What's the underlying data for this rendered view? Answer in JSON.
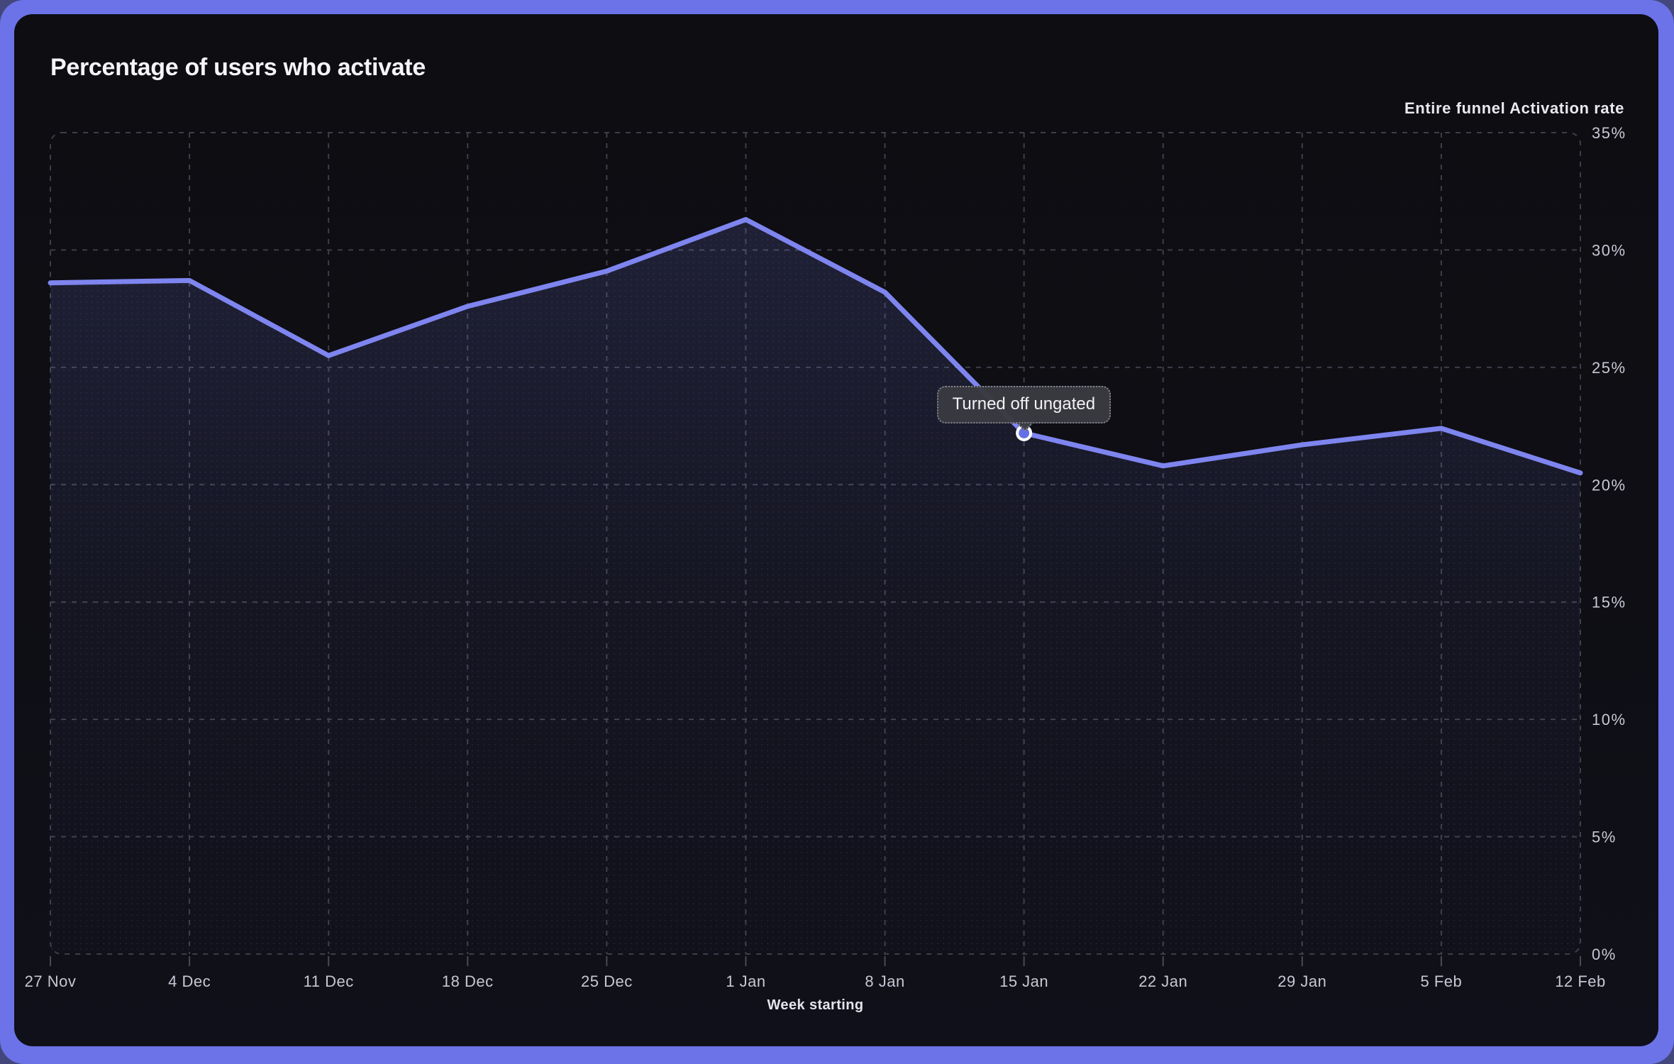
{
  "window": {
    "page_bg": "#43477B",
    "frame_color": "#6C72E7",
    "card_bg": "#0E0E13"
  },
  "chart": {
    "title": "Percentage of users who activate",
    "y_axis_title": "Entire funnel Activation rate",
    "x_axis_title": "Week starting",
    "colors": {
      "line": "#7E85EF",
      "area_top": "rgba(126,133,239,0.16)",
      "area_mid": "rgba(126,133,239,0.06)",
      "area_bottom": "rgba(126,133,239,0.01)",
      "grid": "#3E3E49",
      "tick_mark": "#4A4A55",
      "tick_text": "#C7C8D4",
      "title_text": "#F5F5F8",
      "marker_fill": "#6470E8",
      "marker_ring": "#FFFFFF",
      "tooltip_bg": "#3A3A41",
      "tooltip_border": "#84848D",
      "tooltip_text": "#F2F2F5"
    }
  },
  "tooltip": {
    "text": "Turned off ungated",
    "point_index": 7
  },
  "chart_data": {
    "type": "line",
    "title": "Percentage of users who activate",
    "xlabel": "Week starting",
    "ylabel": "Entire funnel Activation rate",
    "categories": [
      "27 Nov",
      "4 Dec",
      "11 Dec",
      "18 Dec",
      "25 Dec",
      "1 Jan",
      "8 Jan",
      "15 Jan",
      "22 Jan",
      "29 Jan",
      "5 Feb",
      "12 Feb"
    ],
    "series": [
      {
        "name": "Entire funnel Activation rate",
        "values": [
          28.6,
          28.7,
          25.5,
          27.6,
          29.1,
          31.3,
          28.2,
          22.2,
          20.8,
          21.7,
          22.4,
          20.5
        ]
      }
    ],
    "y_ticks": [
      "0%",
      "5%",
      "10%",
      "15%",
      "20%",
      "25%",
      "30%",
      "35%"
    ],
    "y_tick_values": [
      0,
      5,
      10,
      15,
      20,
      25,
      30,
      35
    ],
    "ylim": [
      0,
      35
    ],
    "grid": "dashed",
    "legend": "none",
    "annotation": {
      "label": "Turned off ungated",
      "category": "15 Jan",
      "value": 22.2,
      "index": 7
    }
  }
}
